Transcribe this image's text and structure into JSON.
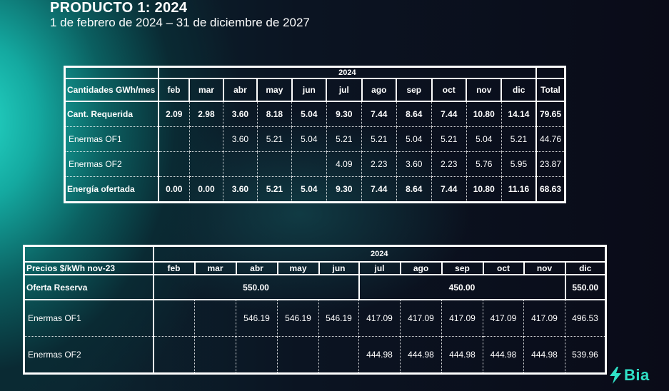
{
  "header": {
    "title": "PRODUCTO 1: 2024",
    "subtitle": "1 de febrero de 2024  – 31 de diciembre de 2027"
  },
  "table1": {
    "year": "2024",
    "label_header": "Cantidades GWh/mes",
    "months": [
      "feb",
      "mar",
      "abr",
      "may",
      "jun",
      "jul",
      "ago",
      "sep",
      "oct",
      "nov",
      "dic"
    ],
    "total_header": "Total",
    "rows": [
      {
        "label": "Cant. Requerida",
        "values": [
          "2.09",
          "2.98",
          "3.60",
          "8.18",
          "5.04",
          "9.30",
          "7.44",
          "8.64",
          "7.44",
          "10.80",
          "14.14"
        ],
        "total": "79.65"
      },
      {
        "label": "Enermas OF1",
        "values": [
          "",
          "",
          "3.60",
          "5.21",
          "5.04",
          "5.21",
          "5.21",
          "5.04",
          "5.21",
          "5.04",
          "5.21"
        ],
        "total": "44.76"
      },
      {
        "label": "Enermas OF2",
        "values": [
          "",
          "",
          "",
          "",
          "",
          "4.09",
          "2.23",
          "3.60",
          "2.23",
          "5.76",
          "5.95"
        ],
        "total": "23.87"
      },
      {
        "label": "Energía ofertada",
        "values": [
          "0.00",
          "0.00",
          "3.60",
          "5.21",
          "5.04",
          "9.30",
          "7.44",
          "8.64",
          "7.44",
          "10.80",
          "11.16"
        ],
        "total": "68.63"
      }
    ]
  },
  "table2": {
    "year": "2024",
    "label_header": "Precios $/kWh nov-23",
    "months": [
      "feb",
      "mar",
      "abr",
      "may",
      "jun",
      "jul",
      "ago",
      "sep",
      "oct",
      "nov",
      "dic"
    ],
    "reserve": {
      "label": "Oferta Reserva",
      "values": [
        "550.00",
        "450.00",
        "550.00"
      ]
    },
    "rows": [
      {
        "label": "Enermas OF1",
        "values": [
          "",
          "",
          "546.19",
          "546.19",
          "546.19",
          "417.09",
          "417.09",
          "417.09",
          "417.09",
          "417.09",
          "496.53"
        ]
      },
      {
        "label": "Enermas OF2",
        "values": [
          "",
          "",
          "",
          "",
          "",
          "444.98",
          "444.98",
          "444.98",
          "444.98",
          "444.98",
          "539.96"
        ]
      }
    ]
  },
  "logo": {
    "text": "Bia",
    "icon": "lightning-bolt-icon",
    "color": "#2fe0c6"
  }
}
